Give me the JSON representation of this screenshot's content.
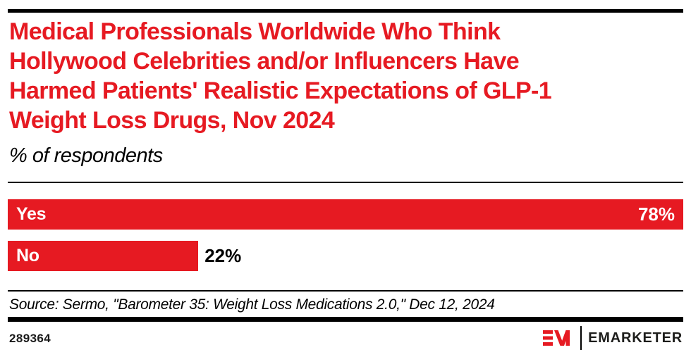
{
  "colors": {
    "brand_red": "#E61A22",
    "text_black": "#000000",
    "background": "#FFFFFF"
  },
  "header": {
    "title": "Medical Professionals Worldwide Who Think Hollywood Celebrities and/or Influencers Have Harmed Patients' Realistic Expectations of GLP-1 Weight Loss Drugs, Nov 2024",
    "title_lines": [
      "Medical Professionals Worldwide Who Think",
      "Hollywood Celebrities and/or Influencers Have",
      "Harmed Patients' Realistic Expectations of GLP-1",
      "Weight Loss Drugs, Nov 2024"
    ],
    "subtitle": "% of respondents"
  },
  "chart_data": {
    "type": "bar",
    "orientation": "horizontal",
    "title": "Medical Professionals Worldwide Who Think Hollywood Celebrities and/or Influencers Have Harmed Patients' Realistic Expectations of GLP-1 Weight Loss Drugs, Nov 2024",
    "subtitle": "% of respondents",
    "categories": [
      "Yes",
      "No"
    ],
    "values": [
      78,
      22
    ],
    "value_labels": [
      "78%",
      "22%"
    ],
    "value_suffix": "%",
    "xlabel": "",
    "ylabel": "",
    "xlim": [
      0,
      78
    ],
    "xmax": 78,
    "grid": false,
    "legend": false,
    "bar_color": "#E61A22"
  },
  "footer": {
    "source": "Source: Sermo, \"Barometer 35: Weight Loss Medications 2.0,\" Dec 12, 2024",
    "chart_id": "289364",
    "logo_text": "EMARKETER"
  }
}
